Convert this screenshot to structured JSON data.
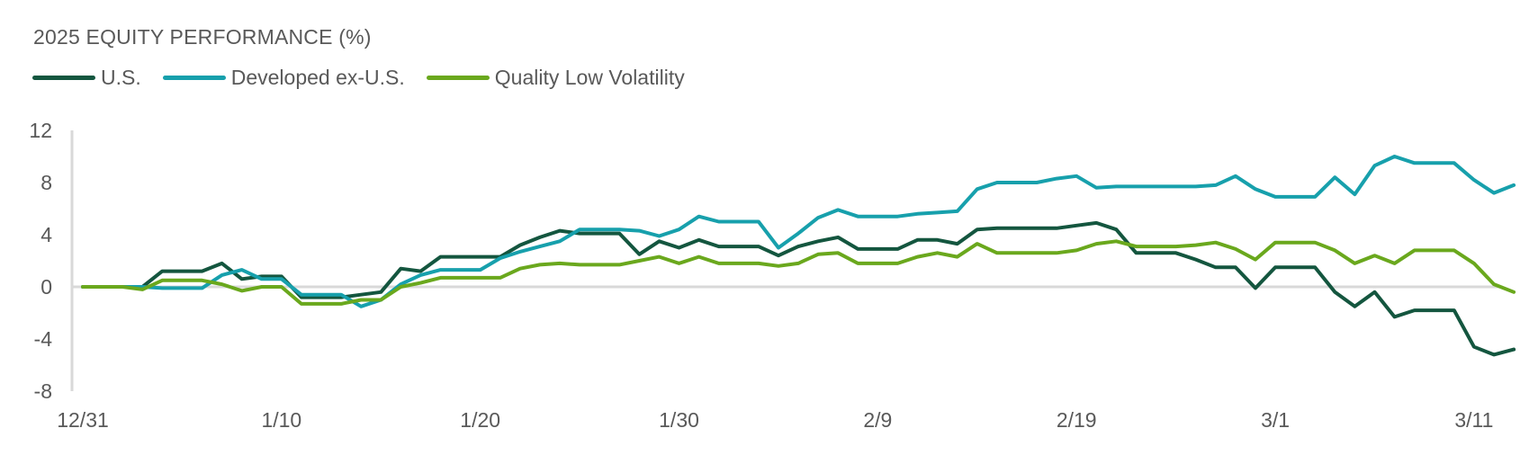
{
  "chart_data": {
    "type": "line",
    "title": "2025 EQUITY PERFORMANCE (%)",
    "xlabel": "",
    "ylabel": "",
    "ylim": [
      -8,
      12
    ],
    "yticks": [
      "12",
      "8",
      "4",
      "0",
      "-4",
      "-8"
    ],
    "x_tick_labels": [
      "12/31",
      "1/10",
      "1/20",
      "1/30",
      "2/9",
      "2/19",
      "3/1",
      "3/11"
    ],
    "x_start": "12/31",
    "x_end": "3/12",
    "legend": "top-left",
    "grid": false,
    "series": [
      {
        "name": "U.S.",
        "color": "#14563f",
        "points": [
          [
            "12/31",
            0
          ],
          [
            "1/1",
            0
          ],
          [
            "1/2",
            0
          ],
          [
            "1/3",
            0
          ],
          [
            "1/4",
            1.2
          ],
          [
            "1/5",
            1.2
          ],
          [
            "1/6",
            1.2
          ],
          [
            "1/7",
            1.8
          ],
          [
            "1/8",
            0.6
          ],
          [
            "1/9",
            0.8
          ],
          [
            "1/10",
            0.8
          ],
          [
            "1/11",
            -0.8
          ],
          [
            "1/12",
            -0.8
          ],
          [
            "1/13",
            -0.8
          ],
          [
            "1/14",
            -0.6
          ],
          [
            "1/15",
            -0.4
          ],
          [
            "1/16",
            1.4
          ],
          [
            "1/17",
            1.2
          ],
          [
            "1/18",
            2.3
          ],
          [
            "1/19",
            2.3
          ],
          [
            "1/20",
            2.3
          ],
          [
            "1/21",
            2.3
          ],
          [
            "1/22",
            3.2
          ],
          [
            "1/23",
            3.8
          ],
          [
            "1/24",
            4.3
          ],
          [
            "1/25",
            4.1
          ],
          [
            "1/26",
            4.1
          ],
          [
            "1/27",
            4.1
          ],
          [
            "1/28",
            2.5
          ],
          [
            "1/29",
            3.5
          ],
          [
            "1/30",
            3.0
          ],
          [
            "1/31",
            3.6
          ],
          [
            "2/1",
            3.1
          ],
          [
            "2/2",
            3.1
          ],
          [
            "2/3",
            3.1
          ],
          [
            "2/4",
            2.4
          ],
          [
            "2/5",
            3.1
          ],
          [
            "2/6",
            3.5
          ],
          [
            "2/7",
            3.8
          ],
          [
            "2/8",
            2.9
          ],
          [
            "2/9",
            2.9
          ],
          [
            "2/10",
            2.9
          ],
          [
            "2/11",
            3.6
          ],
          [
            "2/12",
            3.6
          ],
          [
            "2/13",
            3.3
          ],
          [
            "2/14",
            4.4
          ],
          [
            "2/15",
            4.5
          ],
          [
            "2/16",
            4.5
          ],
          [
            "2/17",
            4.5
          ],
          [
            "2/18",
            4.5
          ],
          [
            "2/19",
            4.7
          ],
          [
            "2/20",
            4.9
          ],
          [
            "2/21",
            4.4
          ],
          [
            "2/22",
            2.6
          ],
          [
            "2/23",
            2.6
          ],
          [
            "2/24",
            2.6
          ],
          [
            "2/25",
            2.1
          ],
          [
            "2/26",
            1.5
          ],
          [
            "2/27",
            1.5
          ],
          [
            "2/28",
            -0.1
          ],
          [
            "3/1",
            1.5
          ],
          [
            "3/2",
            1.5
          ],
          [
            "3/3",
            1.5
          ],
          [
            "3/4",
            -0.4
          ],
          [
            "3/5",
            -1.5
          ],
          [
            "3/6",
            -0.4
          ],
          [
            "3/7",
            -2.3
          ],
          [
            "3/8",
            -1.8
          ],
          [
            "3/9",
            -1.8
          ],
          [
            "3/10",
            -1.8
          ],
          [
            "3/11",
            -4.6
          ],
          [
            "3/12",
            -5.2
          ],
          [
            "3/13",
            -4.8
          ]
        ]
      },
      {
        "name": "Developed ex-U.S.",
        "color": "#17a0ac",
        "points": [
          [
            "12/31",
            0
          ],
          [
            "1/1",
            0
          ],
          [
            "1/2",
            0
          ],
          [
            "1/3",
            0
          ],
          [
            "1/4",
            -0.1
          ],
          [
            "1/5",
            -0.1
          ],
          [
            "1/6",
            -0.1
          ],
          [
            "1/7",
            0.9
          ],
          [
            "1/8",
            1.3
          ],
          [
            "1/9",
            0.6
          ],
          [
            "1/10",
            0.6
          ],
          [
            "1/11",
            -0.6
          ],
          [
            "1/12",
            -0.6
          ],
          [
            "1/13",
            -0.6
          ],
          [
            "1/14",
            -1.5
          ],
          [
            "1/15",
            -1.0
          ],
          [
            "1/16",
            0.2
          ],
          [
            "1/17",
            0.9
          ],
          [
            "1/18",
            1.3
          ],
          [
            "1/19",
            1.3
          ],
          [
            "1/20",
            1.3
          ],
          [
            "1/21",
            2.2
          ],
          [
            "1/22",
            2.7
          ],
          [
            "1/23",
            3.1
          ],
          [
            "1/24",
            3.5
          ],
          [
            "1/25",
            4.4
          ],
          [
            "1/26",
            4.4
          ],
          [
            "1/27",
            4.4
          ],
          [
            "1/28",
            4.3
          ],
          [
            "1/29",
            3.9
          ],
          [
            "1/30",
            4.4
          ],
          [
            "1/31",
            5.4
          ],
          [
            "2/1",
            5.0
          ],
          [
            "2/2",
            5.0
          ],
          [
            "2/3",
            5.0
          ],
          [
            "2/4",
            3.0
          ],
          [
            "2/5",
            4.1
          ],
          [
            "2/6",
            5.3
          ],
          [
            "2/7",
            5.9
          ],
          [
            "2/8",
            5.4
          ],
          [
            "2/9",
            5.4
          ],
          [
            "2/10",
            5.4
          ],
          [
            "2/11",
            5.6
          ],
          [
            "2/12",
            5.7
          ],
          [
            "2/13",
            5.8
          ],
          [
            "2/14",
            7.5
          ],
          [
            "2/15",
            8.0
          ],
          [
            "2/16",
            8.0
          ],
          [
            "2/17",
            8.0
          ],
          [
            "2/18",
            8.3
          ],
          [
            "2/19",
            8.5
          ],
          [
            "2/20",
            7.6
          ],
          [
            "2/21",
            7.7
          ],
          [
            "2/22",
            7.7
          ],
          [
            "2/23",
            7.7
          ],
          [
            "2/24",
            7.7
          ],
          [
            "2/25",
            7.7
          ],
          [
            "2/26",
            7.8
          ],
          [
            "2/27",
            8.5
          ],
          [
            "2/28",
            7.5
          ],
          [
            "3/1",
            6.9
          ],
          [
            "3/2",
            6.9
          ],
          [
            "3/3",
            6.9
          ],
          [
            "3/4",
            8.4
          ],
          [
            "3/5",
            7.1
          ],
          [
            "3/6",
            9.3
          ],
          [
            "3/7",
            10.0
          ],
          [
            "3/8",
            9.5
          ],
          [
            "3/9",
            9.5
          ],
          [
            "3/10",
            9.5
          ],
          [
            "3/11",
            8.2
          ],
          [
            "3/12",
            7.2
          ],
          [
            "3/13",
            7.8
          ]
        ]
      },
      {
        "name": "Quality Low Volatility",
        "color": "#6aa81d",
        "points": [
          [
            "12/31",
            0
          ],
          [
            "1/1",
            0
          ],
          [
            "1/2",
            0
          ],
          [
            "1/3",
            -0.2
          ],
          [
            "1/4",
            0.5
          ],
          [
            "1/5",
            0.5
          ],
          [
            "1/6",
            0.5
          ],
          [
            "1/7",
            0.2
          ],
          [
            "1/8",
            -0.3
          ],
          [
            "1/9",
            0
          ],
          [
            "1/10",
            0
          ],
          [
            "1/11",
            -1.3
          ],
          [
            "1/12",
            -1.3
          ],
          [
            "1/13",
            -1.3
          ],
          [
            "1/14",
            -1.0
          ],
          [
            "1/15",
            -1.0
          ],
          [
            "1/16",
            0
          ],
          [
            "1/17",
            0.3
          ],
          [
            "1/18",
            0.7
          ],
          [
            "1/19",
            0.7
          ],
          [
            "1/20",
            0.7
          ],
          [
            "1/21",
            0.7
          ],
          [
            "1/22",
            1.4
          ],
          [
            "1/23",
            1.7
          ],
          [
            "1/24",
            1.8
          ],
          [
            "1/25",
            1.7
          ],
          [
            "1/26",
            1.7
          ],
          [
            "1/27",
            1.7
          ],
          [
            "1/28",
            2.0
          ],
          [
            "1/29",
            2.3
          ],
          [
            "1/30",
            1.8
          ],
          [
            "1/31",
            2.3
          ],
          [
            "2/1",
            1.8
          ],
          [
            "2/2",
            1.8
          ],
          [
            "2/3",
            1.8
          ],
          [
            "2/4",
            1.6
          ],
          [
            "2/5",
            1.8
          ],
          [
            "2/6",
            2.5
          ],
          [
            "2/7",
            2.6
          ],
          [
            "2/8",
            1.8
          ],
          [
            "2/9",
            1.8
          ],
          [
            "2/10",
            1.8
          ],
          [
            "2/11",
            2.3
          ],
          [
            "2/12",
            2.6
          ],
          [
            "2/13",
            2.3
          ],
          [
            "2/14",
            3.3
          ],
          [
            "2/15",
            2.6
          ],
          [
            "2/16",
            2.6
          ],
          [
            "2/17",
            2.6
          ],
          [
            "2/18",
            2.6
          ],
          [
            "2/19",
            2.8
          ],
          [
            "2/20",
            3.3
          ],
          [
            "2/21",
            3.5
          ],
          [
            "2/22",
            3.1
          ],
          [
            "2/23",
            3.1
          ],
          [
            "2/24",
            3.1
          ],
          [
            "2/25",
            3.2
          ],
          [
            "2/26",
            3.4
          ],
          [
            "2/27",
            2.9
          ],
          [
            "2/28",
            2.1
          ],
          [
            "3/1",
            3.4
          ],
          [
            "3/2",
            3.4
          ],
          [
            "3/3",
            3.4
          ],
          [
            "3/4",
            2.8
          ],
          [
            "3/5",
            1.8
          ],
          [
            "3/6",
            2.4
          ],
          [
            "3/7",
            1.8
          ],
          [
            "3/8",
            2.8
          ],
          [
            "3/9",
            2.8
          ],
          [
            "3/10",
            2.8
          ],
          [
            "3/11",
            1.8
          ],
          [
            "3/12",
            0.2
          ],
          [
            "3/13",
            -0.4
          ]
        ]
      }
    ]
  }
}
